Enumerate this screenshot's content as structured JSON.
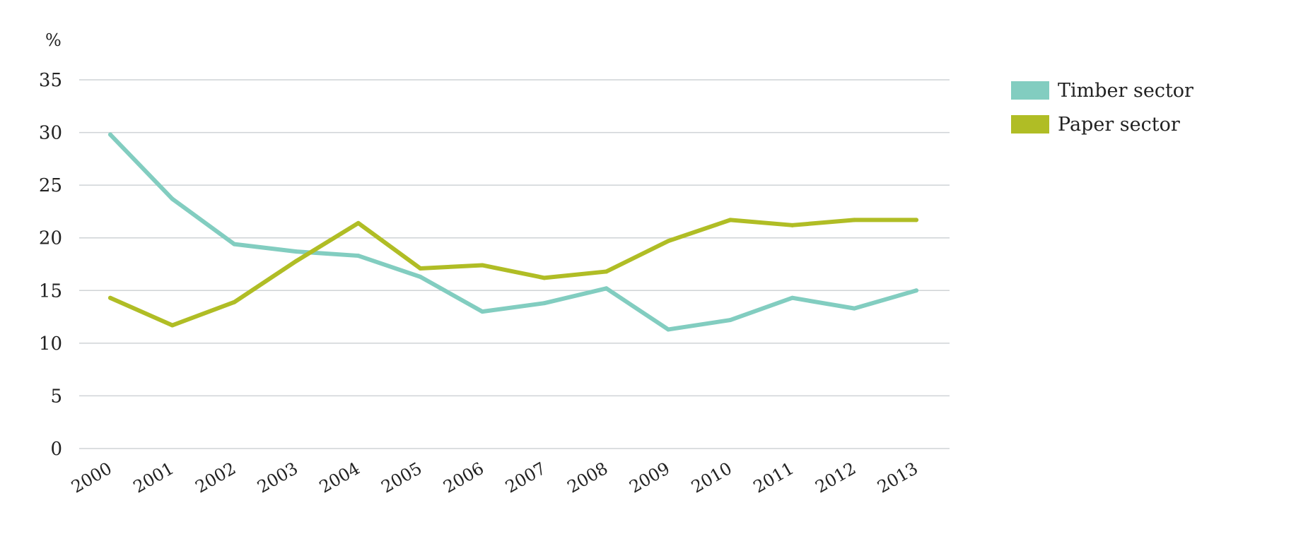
{
  "chart_data": {
    "type": "line",
    "title": "",
    "xlabel": "",
    "ylabel": "%",
    "ylim": [
      0,
      35
    ],
    "yticks": [
      "0",
      "5",
      "10",
      "15",
      "20",
      "25",
      "30",
      "35"
    ],
    "categories": [
      "2000",
      "2001",
      "2002",
      "2003",
      "2004",
      "2005",
      "2006",
      "2007",
      "2008",
      "2009",
      "2010",
      "2011",
      "2012",
      "2013"
    ],
    "grid": true,
    "legend_position": "top-right",
    "series": [
      {
        "name": "Timber sector",
        "color": "#82CDC0",
        "values": [
          29.8,
          23.7,
          19.4,
          18.7,
          18.3,
          16.3,
          13.0,
          13.8,
          15.2,
          11.3,
          12.2,
          14.3,
          13.3,
          15.0
        ]
      },
      {
        "name": "Paper sector",
        "color": "#B0BD25",
        "values": [
          14.3,
          11.7,
          13.9,
          17.8,
          21.4,
          17.1,
          17.4,
          16.2,
          16.8,
          19.7,
          21.7,
          21.2,
          21.7,
          21.7
        ]
      }
    ]
  }
}
